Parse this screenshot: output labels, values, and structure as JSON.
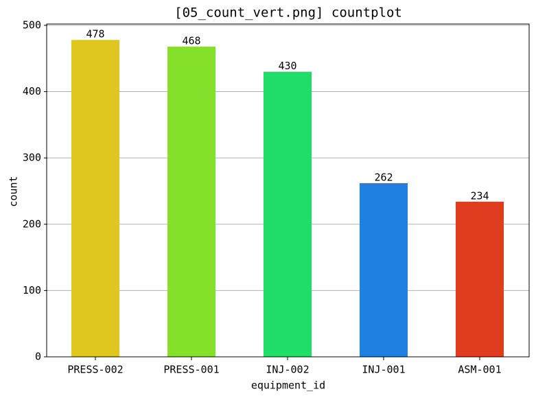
{
  "chart_data": {
    "type": "bar",
    "title": "[05_count_vert.png] countplot",
    "x_label": "equipment_id",
    "y_label": "count",
    "categories": [
      "PRESS-002",
      "PRESS-001",
      "INJ-002",
      "INJ-001",
      "ASM-001"
    ],
    "values": [
      478,
      468,
      430,
      262,
      234
    ],
    "colors": [
      "#dfc71f",
      "#84e02a",
      "#20dd6a",
      "#2080e0",
      "#e03d20"
    ],
    "ylim": [
      0,
      502
    ],
    "yticks": [
      0,
      100,
      200,
      300,
      400,
      500
    ],
    "grid": true
  }
}
